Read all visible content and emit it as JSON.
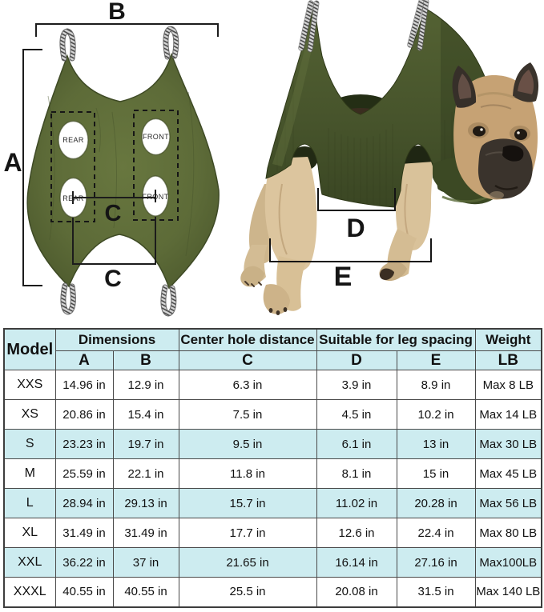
{
  "diagram_flat": {
    "dim_a": "A",
    "dim_b": "B",
    "dim_c_center": "C",
    "dim_c_bottom": "C",
    "holes": {
      "top_left": "REAR",
      "top_right": "FRONT",
      "bottom_left": "REAR",
      "bottom_right": "FRONT"
    },
    "colors": {
      "fabric": "#5d6b38",
      "fabric_edge": "#3e4a25",
      "line": "#1c1c1c"
    }
  },
  "photo": {
    "dim_d": "D",
    "dim_e": "E",
    "colors": {
      "fabric": "#46532b",
      "fabric_dark": "#333f1f",
      "dog_fawn": "#c6a274",
      "dog_leg": "#dcc59e",
      "dog_dark": "#38312a"
    }
  },
  "table": {
    "header": {
      "model": "Model",
      "dimensions": "Dimensions",
      "center_hole": "Center hole distance",
      "leg_spacing": "Suitable for leg spacing",
      "weight": "Weight",
      "col_a": "A",
      "col_b": "B",
      "col_c": "C",
      "col_d": "D",
      "col_e": "E",
      "col_lb": "LB"
    },
    "rows": [
      {
        "model": "XXS",
        "a": "14.96 in",
        "b": "12.9 in",
        "c": "6.3 in",
        "d": "3.9 in",
        "e": "8.9 in",
        "weight": "Max 8 LB",
        "highlighted": false
      },
      {
        "model": "XS",
        "a": "20.86 in",
        "b": "15.4 in",
        "c": "7.5 in",
        "d": "4.5 in",
        "e": "10.2 in",
        "weight": "Max 14 LB",
        "highlighted": false
      },
      {
        "model": "S",
        "a": "23.23 in",
        "b": "19.7 in",
        "c": "9.5 in",
        "d": "6.1 in",
        "e": "13 in",
        "weight": "Max 30 LB",
        "highlighted": true
      },
      {
        "model": "M",
        "a": "25.59 in",
        "b": "22.1 in",
        "c": "11.8 in",
        "d": "8.1 in",
        "e": "15 in",
        "weight": "Max 45 LB",
        "highlighted": false
      },
      {
        "model": "L",
        "a": "28.94 in",
        "b": "29.13 in",
        "c": "15.7 in",
        "d": "11.02 in",
        "e": "20.28 in",
        "weight": "Max 56 LB",
        "highlighted": true
      },
      {
        "model": "XL",
        "a": "31.49 in",
        "b": "31.49 in",
        "c": "17.7 in",
        "d": "12.6 in",
        "e": "22.4 in",
        "weight": "Max 80 LB",
        "highlighted": false
      },
      {
        "model": "XXL",
        "a": "36.22 in",
        "b": "37 in",
        "c": "21.65 in",
        "d": "16.14 in",
        "e": "27.16 in",
        "weight": "Max100LB",
        "highlighted": true
      },
      {
        "model": "XXXL",
        "a": "40.55 in",
        "b": "40.55 in",
        "c": "25.5 in",
        "d": "20.08 in",
        "e": "31.5 in",
        "weight": "Max 140 LB",
        "highlighted": false
      }
    ]
  }
}
